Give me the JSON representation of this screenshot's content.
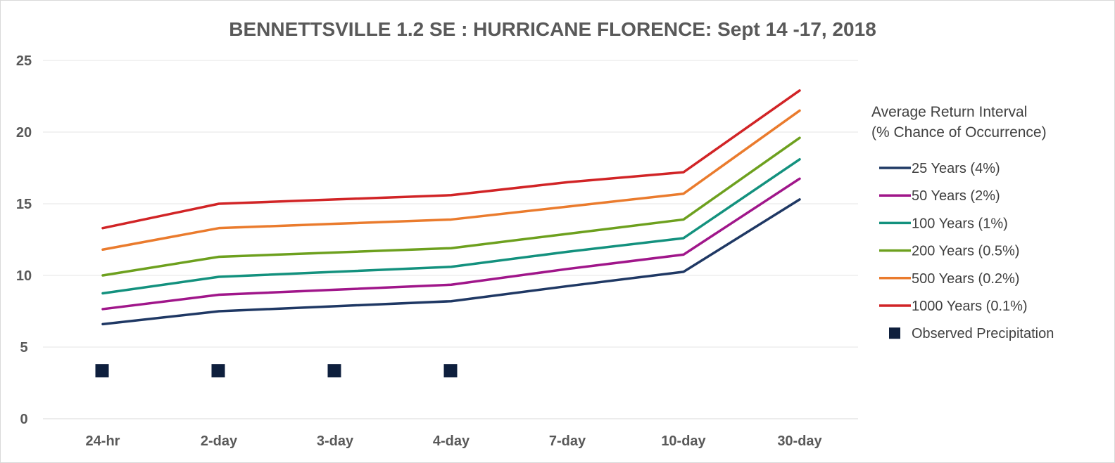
{
  "chart_data": {
    "type": "line",
    "title": "BENNETTSVILLE 1.2 SE : HURRICANE FLORENCE: Sept 14 -17, 2018",
    "xlabel": "",
    "ylabel": "",
    "categories": [
      "24-hr",
      "2-day",
      "3-day",
      "4-day",
      "7-day",
      "10-day",
      "30-day"
    ],
    "ylim": [
      0,
      25
    ],
    "yticks": [
      0,
      5,
      10,
      15,
      20,
      25
    ],
    "grid": true,
    "legend_position": "right",
    "legend_title_lines": [
      "Average Return Interval",
      "(% Chance of Occurrence)"
    ],
    "series": [
      {
        "name": "25 Years (4%)",
        "color": "#1f3864",
        "values": [
          6.6,
          7.5,
          7.85,
          8.2,
          9.25,
          10.25,
          15.3
        ]
      },
      {
        "name": "50 Years (2%)",
        "color": "#a0168a",
        "values": [
          7.65,
          8.65,
          9.0,
          9.35,
          10.45,
          11.45,
          16.75
        ]
      },
      {
        "name": "100 Years (1%)",
        "color": "#13917e",
        "values": [
          8.75,
          9.9,
          10.25,
          10.6,
          11.65,
          12.6,
          18.1
        ]
      },
      {
        "name": "200 Years (0.5%)",
        "color": "#6da01e",
        "values": [
          10.0,
          11.3,
          11.6,
          11.9,
          12.9,
          13.9,
          19.6
        ]
      },
      {
        "name": "500 Years (0.2%)",
        "color": "#ea7b2d",
        "values": [
          11.8,
          13.3,
          13.6,
          13.9,
          14.8,
          15.7,
          21.5
        ]
      },
      {
        "name": "1000 Years (0.1%)",
        "color": "#d12426",
        "values": [
          13.3,
          15.0,
          15.3,
          15.6,
          16.5,
          17.2,
          22.9
        ]
      }
    ],
    "observed": {
      "name": "Observed Precipitation",
      "color": "#0e1f3d",
      "values": [
        3.35,
        3.35,
        3.35,
        3.35,
        null,
        null,
        null
      ]
    }
  }
}
